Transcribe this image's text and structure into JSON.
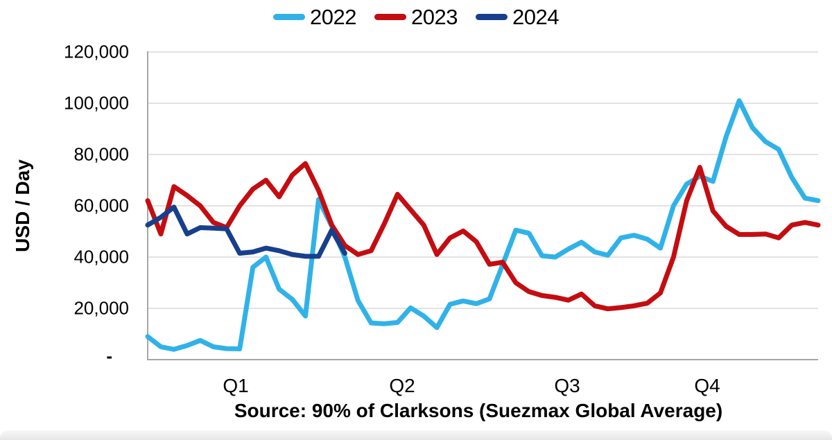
{
  "legend": [
    {
      "label": "2022",
      "color": "#30B2E8"
    },
    {
      "label": "2023",
      "color": "#C40D11"
    },
    {
      "label": "2024",
      "color": "#173F8C"
    }
  ],
  "y_axis": {
    "title": "USD / Day",
    "tick_labels": [
      "120,000",
      "100,000",
      "80,000",
      "60,000",
      "40,000",
      "20,000",
      "-"
    ]
  },
  "x_axis": {
    "tick_labels": [
      "Q1",
      "Q2",
      "Q3",
      "Q4"
    ]
  },
  "source_note": "Source: 90% of Clarksons (Suezmax Global Average)",
  "chart_data": {
    "type": "line",
    "title": "",
    "xlabel": "",
    "ylabel": "USD / Day",
    "ylim": [
      0,
      120000
    ],
    "y_tick_step": 20000,
    "grid": "horizontal",
    "legend_position": "top",
    "x_unit": "weeks (52 weekly points per full year, Q1–Q4)",
    "weeks": 52,
    "x_tick_labels": [
      "Q1",
      "Q2",
      "Q3",
      "Q4"
    ],
    "series": [
      {
        "name": "2022",
        "color": "#30B2E8",
        "values": [
          9000,
          5000,
          4000,
          5500,
          7500,
          5000,
          4300,
          4200,
          36000,
          40000,
          27500,
          23500,
          17000,
          62500,
          52000,
          40000,
          23000,
          14300,
          14000,
          14500,
          20200,
          17000,
          12500,
          21600,
          22900,
          21800,
          23700,
          37000,
          50500,
          49300,
          40500,
          40000,
          43100,
          45800,
          42000,
          40700,
          47500,
          48500,
          47000,
          43500,
          60000,
          68500,
          71500,
          69500,
          87000,
          101000,
          90500,
          85000,
          82000,
          71000,
          63000,
          62000
        ]
      },
      {
        "name": "2023",
        "color": "#C40D11",
        "values": [
          62000,
          49000,
          67500,
          64000,
          60000,
          53500,
          51500,
          60000,
          66500,
          70000,
          63500,
          72000,
          76500,
          66000,
          52500,
          44500,
          41000,
          42500,
          53000,
          64500,
          58500,
          52500,
          41000,
          47500,
          50200,
          46000,
          37200,
          38000,
          30000,
          26500,
          25000,
          24300,
          23200,
          25600,
          21000,
          19800,
          20300,
          21000,
          22000,
          26000,
          40000,
          62000,
          75000,
          58000,
          52000,
          48800,
          48800,
          49000,
          47500,
          52500,
          53500,
          52500
        ]
      },
      {
        "name": "2024",
        "color": "#173F8C",
        "values": [
          52500,
          55500,
          59500,
          49000,
          51500,
          51300,
          51000,
          41500,
          42000,
          43500,
          42500,
          41000,
          40300,
          40300,
          50500,
          41500
        ]
      }
    ]
  }
}
